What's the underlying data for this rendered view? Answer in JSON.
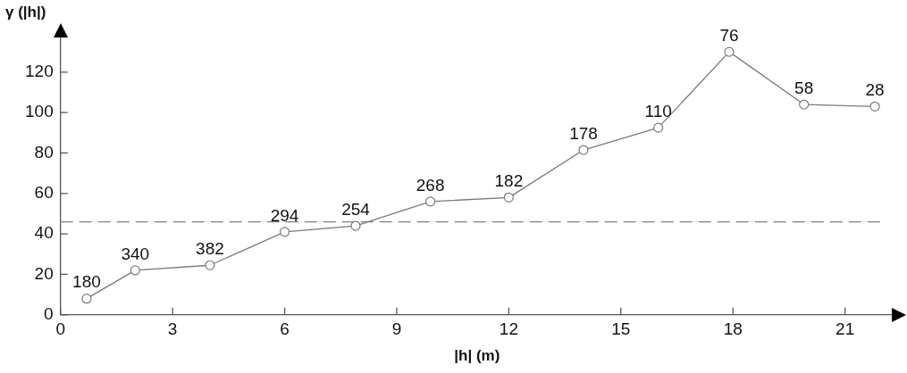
{
  "chart_data": {
    "type": "line",
    "xlabel": "|h| (m)",
    "ylabel": "γ (|h|)",
    "x": [
      0.7,
      2.0,
      4.0,
      6.0,
      7.9,
      9.9,
      12.0,
      14.0,
      16.0,
      17.9,
      19.9,
      21.8
    ],
    "series": [
      {
        "color": "#7a7a7a",
        "values": [
          8,
          22,
          24.5,
          41,
          44,
          56,
          58,
          81.5,
          92.5,
          130,
          104,
          103
        ]
      }
    ],
    "marker": "circle",
    "line_style": "solid",
    "xlim": [
      0,
      22.3
    ],
    "ylim": [
      0,
      138
    ],
    "xticks": [
      0,
      3,
      6,
      9,
      12,
      15,
      18,
      21
    ],
    "yticks": [
      0,
      20,
      40,
      60,
      80,
      100,
      120
    ],
    "ref_lines": [
      {
        "axis": "y",
        "value": 46,
        "color": "#808080",
        "line_style": "dashed"
      }
    ],
    "annotations": [
      {
        "text": "180",
        "x": 0.7,
        "y": 8
      },
      {
        "text": "340",
        "x": 2.0,
        "y": 22
      },
      {
        "text": "382",
        "x": 4.0,
        "y": 24.5
      },
      {
        "text": "294",
        "x": 6.0,
        "y": 41
      },
      {
        "text": "254",
        "x": 7.9,
        "y": 44
      },
      {
        "text": "268",
        "x": 9.9,
        "y": 56
      },
      {
        "text": "182",
        "x": 12.0,
        "y": 58
      },
      {
        "text": "178",
        "x": 14.0,
        "y": 81.5
      },
      {
        "text": "110",
        "x": 16.0,
        "y": 92.5
      },
      {
        "text": "76",
        "x": 17.9,
        "y": 130
      },
      {
        "text": "58",
        "x": 19.9,
        "y": 104
      },
      {
        "text": "28",
        "x": 21.8,
        "y": 103
      }
    ]
  }
}
